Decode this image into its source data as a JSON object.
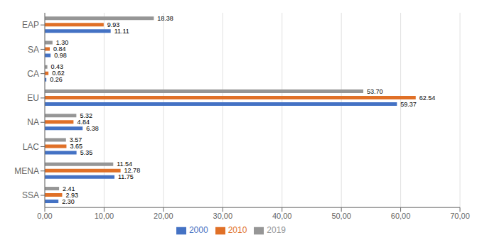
{
  "chart_data": {
    "type": "bar",
    "orientation": "horizontal",
    "categories": [
      "EAP",
      "SA",
      "CA",
      "EU",
      "NA",
      "LAC",
      "MENA",
      "SSA"
    ],
    "series": [
      {
        "name": "2019",
        "color": "#969696",
        "values": [
          18.38,
          1.3,
          0.43,
          53.7,
          5.32,
          3.57,
          11.54,
          2.41
        ],
        "value_labels": [
          "18.38",
          "1.30",
          "0.43",
          "53.70",
          "5.32",
          "3.57",
          "11.54",
          "2.41"
        ]
      },
      {
        "name": "2010",
        "color": "#E07027",
        "values": [
          9.93,
          0.84,
          0.62,
          62.54,
          4.84,
          3.65,
          12.78,
          2.93
        ],
        "value_labels": [
          "9.93",
          "0.84",
          "0.62",
          "62.54",
          "4.84",
          "3.65",
          "12.78",
          "2.93"
        ]
      },
      {
        "name": "2000",
        "color": "#4472C4",
        "values": [
          11.11,
          0.98,
          0.26,
          59.37,
          6.38,
          5.35,
          11.75,
          2.3
        ],
        "value_labels": [
          "11.11",
          "0.98",
          "0.26",
          "59.37",
          "6.38",
          "5.35",
          "11.75",
          "2.30"
        ]
      }
    ],
    "xlim": [
      0,
      70
    ],
    "xticks": [
      {
        "value": 0,
        "label": "0,00"
      },
      {
        "value": 10,
        "label": "10,00"
      },
      {
        "value": 20,
        "label": "20,00"
      },
      {
        "value": 30,
        "label": "30,00"
      },
      {
        "value": 40,
        "label": "40,00"
      },
      {
        "value": 50,
        "label": "50,00"
      },
      {
        "value": 60,
        "label": "60,00"
      },
      {
        "value": 70,
        "label": "70,00"
      }
    ],
    "grid": true,
    "legend": "bottom",
    "data_labels": true
  }
}
